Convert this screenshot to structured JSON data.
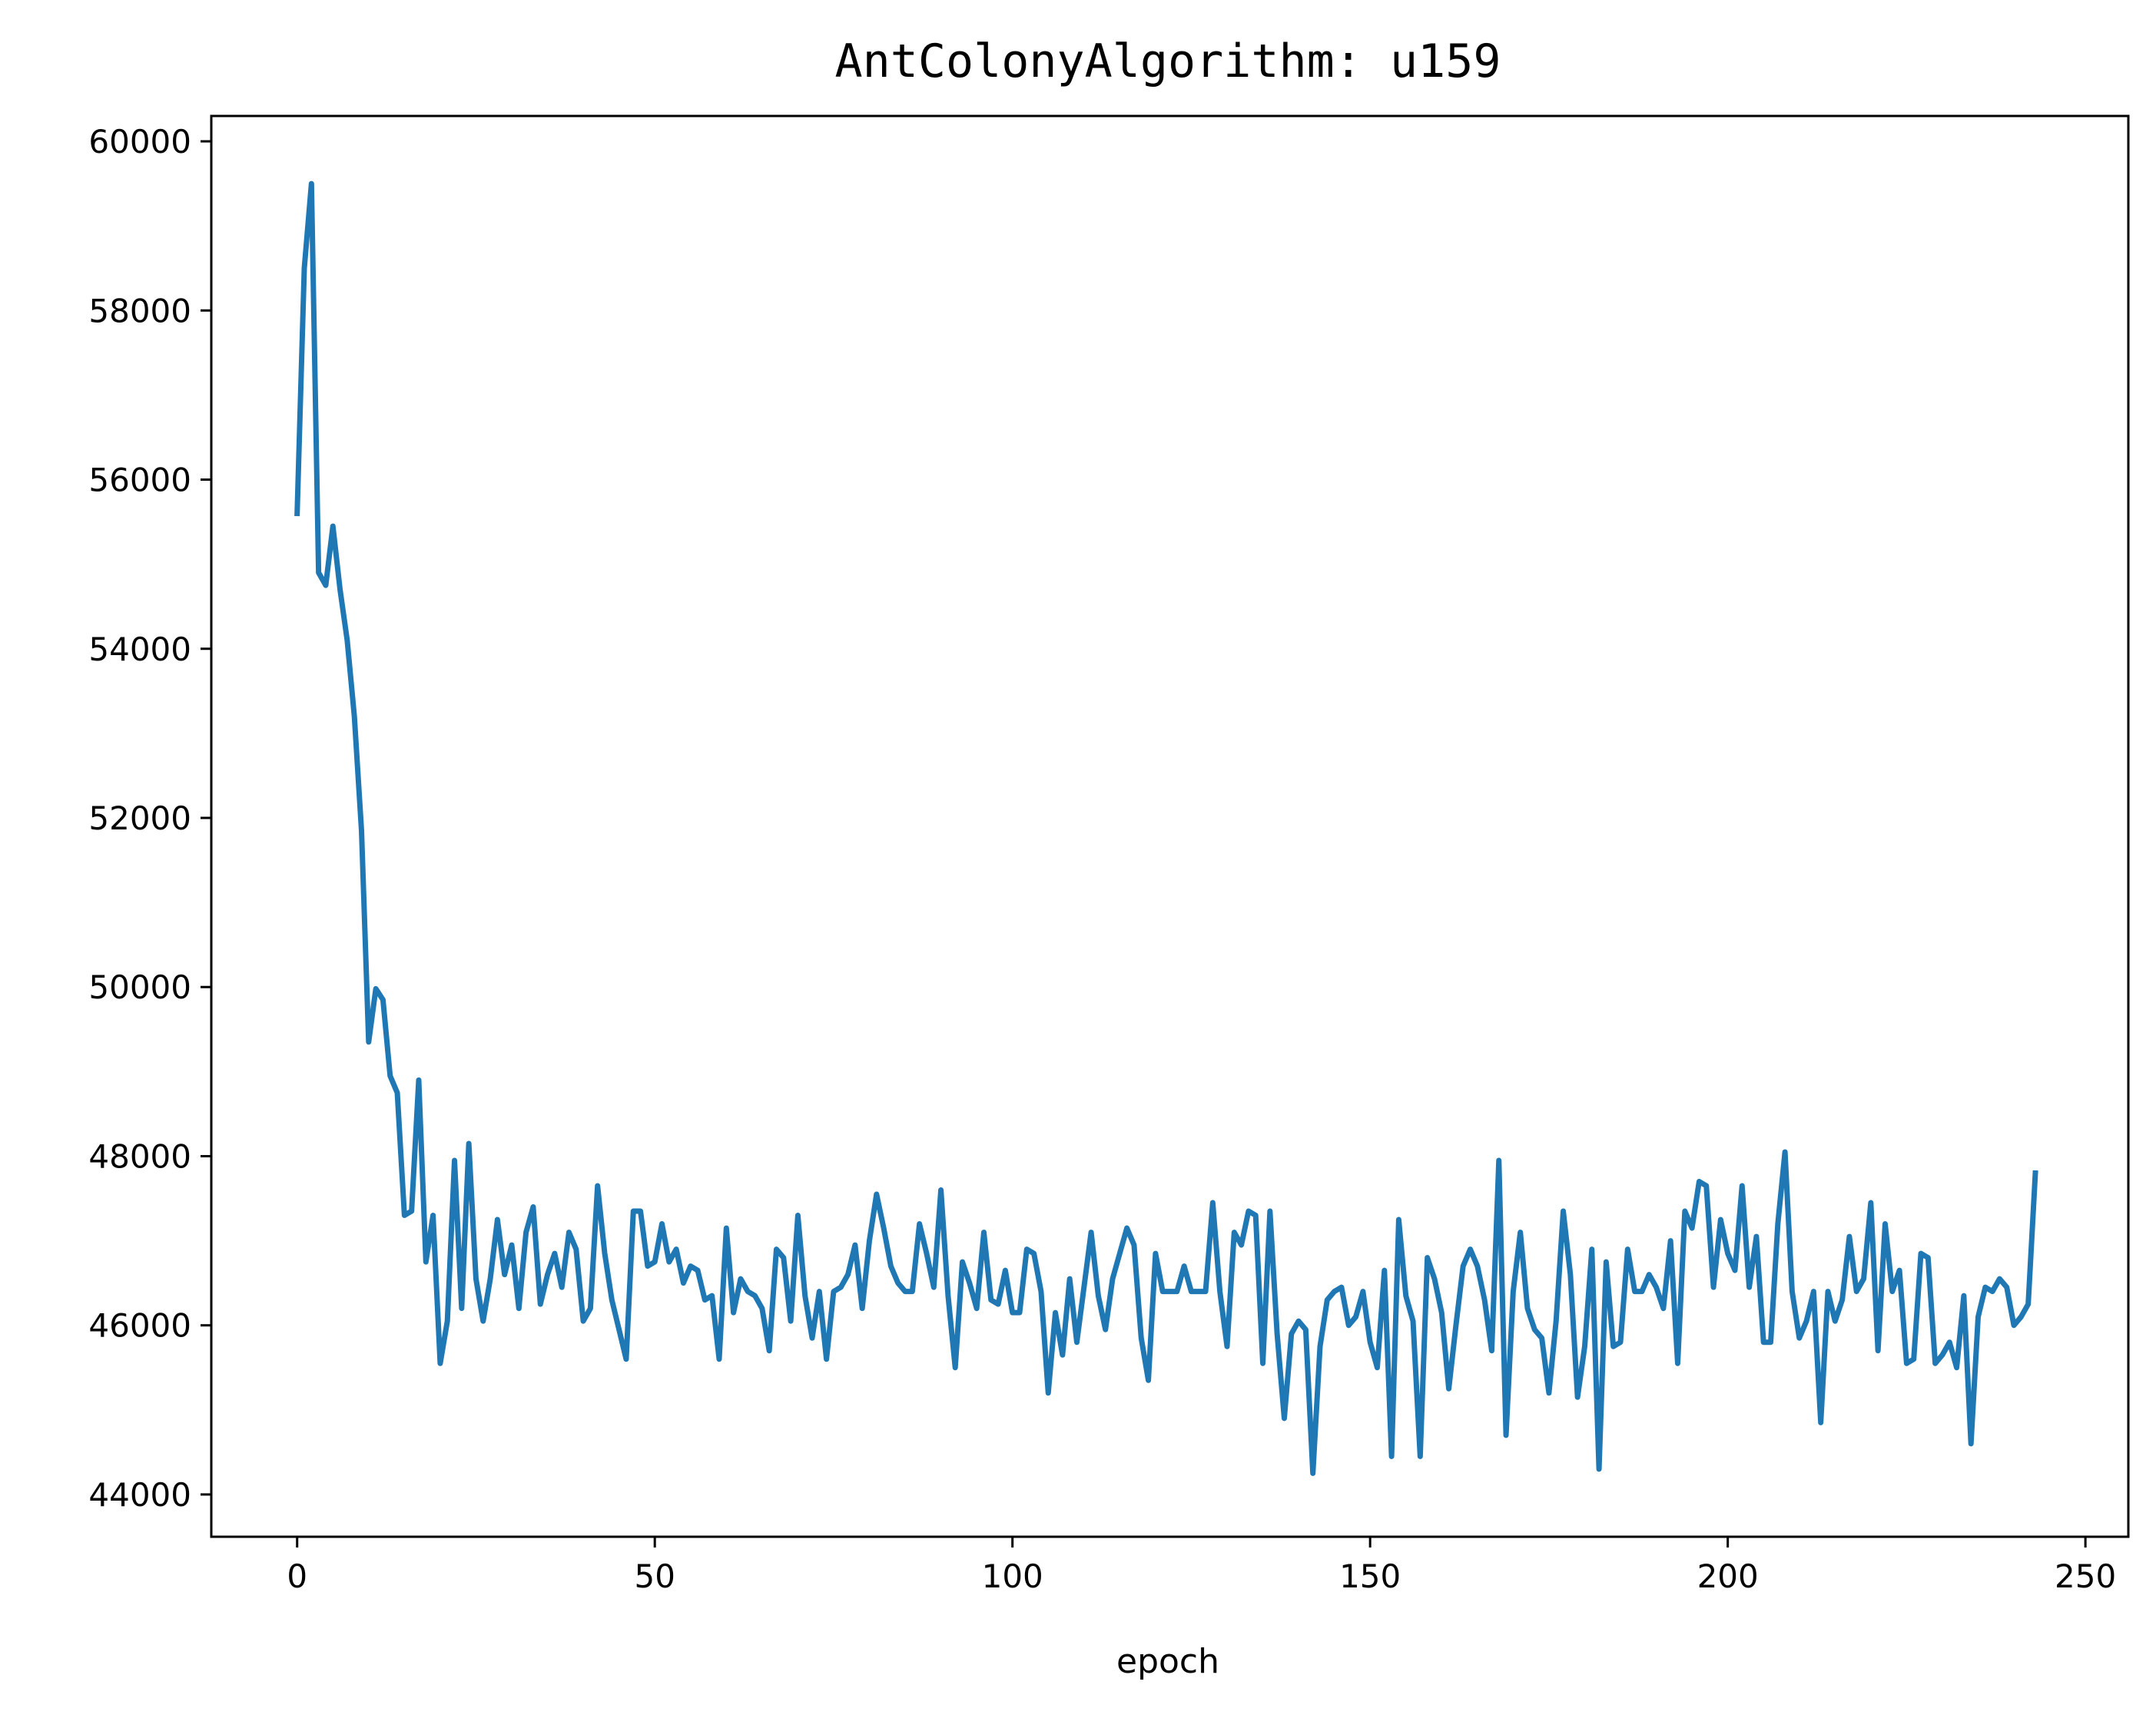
{
  "chart_data": {
    "type": "line",
    "title": "AntColonyAlgorithm: u159",
    "xlabel": "epoch",
    "ylabel": "",
    "xlim": [
      -12,
      256
    ],
    "ylim": [
      43500,
      60300
    ],
    "x_ticks": [
      0,
      50,
      100,
      150,
      200,
      250
    ],
    "y_ticks": [
      44000,
      46000,
      48000,
      50000,
      52000,
      54000,
      56000,
      58000,
      60000
    ],
    "x_tick_labels": [
      "0",
      "50",
      "100",
      "150",
      "200",
      "250"
    ],
    "y_tick_labels": [
      "44000",
      "46000",
      "48000",
      "50000",
      "52000",
      "54000",
      "56000",
      "58000",
      "60000"
    ],
    "grid": false,
    "series": [
      {
        "name": "",
        "color": "#1f77b4",
        "values": [
          55600,
          58500,
          59500,
          54900,
          54750,
          55450,
          54700,
          54100,
          53200,
          51850,
          49350,
          49980,
          49850,
          48950,
          48750,
          47300,
          47350,
          48900,
          46750,
          47300,
          45550,
          46050,
          47950,
          46200,
          48150,
          46550,
          46050,
          46550,
          47250,
          46600,
          46950,
          46200,
          47100,
          47400,
          46250,
          46600,
          46850,
          46450,
          47100,
          46900,
          46050,
          46200,
          47650,
          46850,
          46300,
          45950,
          45600,
          47350,
          47350,
          46700,
          46750,
          47200,
          46750,
          46900,
          46500,
          46700,
          46650,
          46300,
          46350,
          45600,
          47150,
          46150,
          46550,
          46400,
          46350,
          46200,
          45700,
          46900,
          46800,
          46050,
          47300,
          46350,
          45850,
          46400,
          45600,
          46400,
          46450,
          46600,
          46950,
          46200,
          47000,
          47550,
          47150,
          46700,
          46500,
          46400,
          46400,
          47200,
          46850,
          46450,
          47600,
          46350,
          45500,
          46750,
          46500,
          46200,
          47100,
          46300,
          46250,
          46650,
          46150,
          46150,
          46900,
          46850,
          46400,
          45200,
          46150,
          45650,
          46550,
          45800,
          46450,
          47100,
          46350,
          45950,
          46550,
          46850,
          47150,
          46950,
          45850,
          45350,
          46850,
          46400,
          46400,
          46400,
          46700,
          46400,
          46400,
          46400,
          47450,
          46400,
          45750,
          47100,
          46950,
          47350,
          47300,
          45550,
          47350,
          45900,
          44900,
          45900,
          46050,
          45950,
          44250,
          45750,
          46300,
          46400,
          46450,
          46000,
          46100,
          46400,
          45800,
          45500,
          46650,
          44450,
          47250,
          46350,
          46050,
          44450,
          46800,
          46550,
          46150,
          45250,
          46000,
          46700,
          46900,
          46700,
          46300,
          45700,
          47950,
          44700,
          46400,
          47100,
          46200,
          45950,
          45850,
          45200,
          46050,
          47350,
          46600,
          45150,
          45750,
          46900,
          44300,
          46750,
          45750,
          45800,
          46900,
          46400,
          46400,
          46600,
          46450,
          46200,
          47000,
          45550,
          47350,
          47150,
          47700,
          47650,
          46450,
          47250,
          46850,
          46650,
          47650,
          46450,
          47050,
          45800,
          45800,
          47200,
          48050,
          46400,
          45850,
          46050,
          46400,
          44850,
          46400,
          46050,
          46300,
          47050,
          46400,
          46550,
          47450,
          45700,
          47200,
          46400,
          46650,
          45550,
          45600,
          46850,
          46800,
          45550,
          45650,
          45800,
          45500,
          46350,
          44600,
          46100,
          46450,
          46400,
          46550,
          46450,
          46000,
          46100,
          46250,
          47800
        ]
      }
    ]
  }
}
